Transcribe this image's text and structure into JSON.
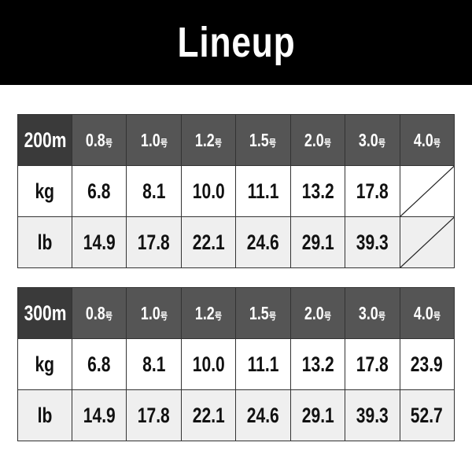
{
  "title": "Lineup",
  "tables": [
    {
      "length": "200m",
      "sizes": [
        "0.8",
        "1.0",
        "1.2",
        "1.5",
        "2.0",
        "3.0",
        "4.0"
      ],
      "size_unit": "号",
      "rows": [
        {
          "label": "kg",
          "values": [
            "6.8",
            "8.1",
            "10.0",
            "11.1",
            "13.2",
            "17.8",
            null
          ]
        },
        {
          "label": "lb",
          "values": [
            "14.9",
            "17.8",
            "22.1",
            "24.6",
            "29.1",
            "39.3",
            null
          ]
        }
      ]
    },
    {
      "length": "300m",
      "sizes": [
        "0.8",
        "1.0",
        "1.2",
        "1.5",
        "2.0",
        "3.0",
        "4.0"
      ],
      "size_unit": "号",
      "rows": [
        {
          "label": "kg",
          "values": [
            "6.8",
            "8.1",
            "10.0",
            "11.1",
            "13.2",
            "17.8",
            "23.9"
          ]
        },
        {
          "label": "lb",
          "values": [
            "14.9",
            "17.8",
            "22.1",
            "24.6",
            "29.1",
            "39.3",
            "52.7"
          ]
        }
      ]
    }
  ]
}
